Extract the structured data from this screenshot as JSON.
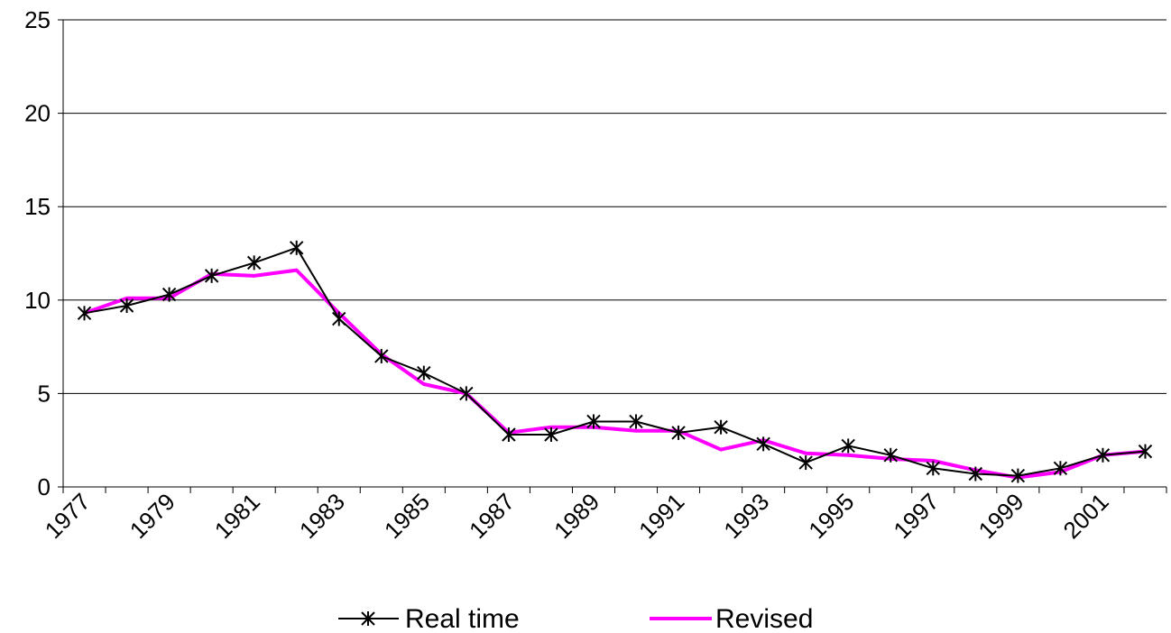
{
  "chart_data": {
    "type": "line",
    "title": "",
    "xlabel": "",
    "ylabel": "",
    "x": [
      1977,
      1978,
      1979,
      1980,
      1981,
      1982,
      1983,
      1984,
      1985,
      1986,
      1987,
      1988,
      1989,
      1990,
      1991,
      1992,
      1993,
      1994,
      1995,
      1996,
      1997,
      1998,
      1999,
      2000,
      2001,
      2002
    ],
    "x_tick_labels": [
      "1977",
      "1979",
      "1981",
      "1983",
      "1985",
      "1987",
      "1989",
      "1991",
      "1993",
      "1995",
      "1997",
      "1999",
      "2001"
    ],
    "ylim": [
      0,
      25
    ],
    "y_ticks": [
      0,
      5,
      10,
      15,
      20,
      25
    ],
    "grid": "horizontal",
    "legend_position": "bottom",
    "series": [
      {
        "name": "Real time",
        "color": "#000000",
        "marker": "asterisk",
        "values": [
          9.3,
          9.7,
          10.3,
          11.3,
          12.0,
          12.8,
          9.0,
          7.0,
          6.1,
          5.0,
          2.8,
          2.8,
          3.5,
          3.5,
          2.9,
          3.2,
          2.3,
          1.3,
          2.2,
          1.7,
          1.0,
          0.7,
          0.6,
          1.0,
          1.7,
          1.9
        ]
      },
      {
        "name": "Revised",
        "color": "#ff00ff",
        "marker": "none",
        "values": [
          9.3,
          10.1,
          10.1,
          11.4,
          11.3,
          11.6,
          9.3,
          7.1,
          5.5,
          5.0,
          2.9,
          3.2,
          3.2,
          3.0,
          3.0,
          2.0,
          2.5,
          1.8,
          1.7,
          1.5,
          1.4,
          0.9,
          0.5,
          0.8,
          1.7,
          1.9
        ]
      }
    ]
  }
}
